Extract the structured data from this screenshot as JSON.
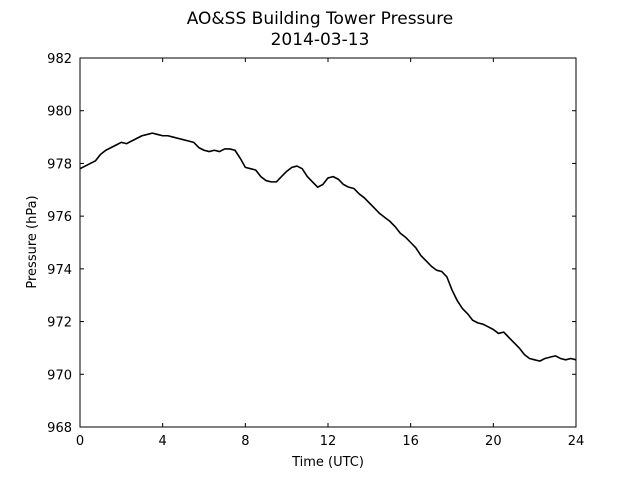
{
  "chart_data": {
    "type": "line",
    "title": "AO&SS Building Tower Pressure",
    "subtitle": "2014-03-13",
    "xlabel": "Time (UTC)",
    "ylabel": "Pressure (hPa)",
    "xlim": [
      0,
      24
    ],
    "ylim": [
      968,
      982
    ],
    "xticks": [
      0,
      4,
      8,
      12,
      16,
      20,
      24
    ],
    "yticks": [
      968,
      970,
      972,
      974,
      976,
      978,
      980,
      982
    ],
    "grid": false,
    "legend": "none",
    "line_color": "#000000",
    "series": [
      {
        "x": [
          0,
          0.25,
          0.5,
          0.75,
          1.0,
          1.25,
          1.5,
          1.75,
          2.0,
          2.25,
          2.5,
          2.75,
          3.0,
          3.25,
          3.5,
          3.75,
          4.0,
          4.25,
          4.5,
          4.75,
          5.0,
          5.25,
          5.5,
          5.75,
          6.0,
          6.25,
          6.5,
          6.75,
          7.0,
          7.25,
          7.5,
          7.75,
          8.0,
          8.25,
          8.5,
          8.75,
          9.0,
          9.25,
          9.5,
          9.75,
          10.0,
          10.25,
          10.5,
          10.75,
          11.0,
          11.25,
          11.5,
          11.75,
          12.0,
          12.25,
          12.5,
          12.75,
          13.0,
          13.25,
          13.5,
          13.75,
          14.0,
          14.25,
          14.5,
          14.75,
          15.0,
          15.25,
          15.5,
          15.75,
          16.0,
          16.25,
          16.5,
          16.75,
          17.0,
          17.25,
          17.5,
          17.75,
          18.0,
          18.25,
          18.5,
          18.75,
          19.0,
          19.25,
          19.5,
          19.75,
          20.0,
          20.25,
          20.5,
          20.75,
          21.0,
          21.25,
          21.5,
          21.75,
          22.0,
          22.25,
          22.5,
          22.75,
          23.0,
          23.25,
          23.5,
          23.75,
          24.0
        ],
        "y": [
          977.8,
          977.9,
          978.0,
          978.1,
          978.35,
          978.5,
          978.6,
          978.7,
          978.8,
          978.75,
          978.85,
          978.95,
          979.05,
          979.1,
          979.15,
          979.1,
          979.05,
          979.05,
          979.0,
          978.95,
          978.9,
          978.85,
          978.8,
          978.6,
          978.5,
          978.45,
          978.5,
          978.45,
          978.55,
          978.55,
          978.5,
          978.2,
          977.85,
          977.8,
          977.75,
          977.5,
          977.35,
          977.3,
          977.3,
          977.5,
          977.7,
          977.85,
          977.9,
          977.8,
          977.5,
          977.3,
          977.1,
          977.2,
          977.45,
          977.5,
          977.4,
          977.2,
          977.1,
          977.05,
          976.85,
          976.7,
          976.5,
          976.3,
          976.1,
          975.95,
          975.8,
          975.6,
          975.35,
          975.2,
          975.0,
          974.8,
          974.5,
          974.3,
          974.1,
          973.95,
          973.9,
          973.7,
          973.2,
          972.8,
          972.5,
          972.3,
          972.05,
          971.95,
          971.9,
          971.8,
          971.7,
          971.55,
          971.6,
          971.4,
          971.2,
          971.0,
          970.75,
          970.6,
          970.55,
          970.5,
          970.6,
          970.65,
          970.7,
          970.6,
          970.55,
          970.6,
          970.55
        ]
      }
    ]
  }
}
